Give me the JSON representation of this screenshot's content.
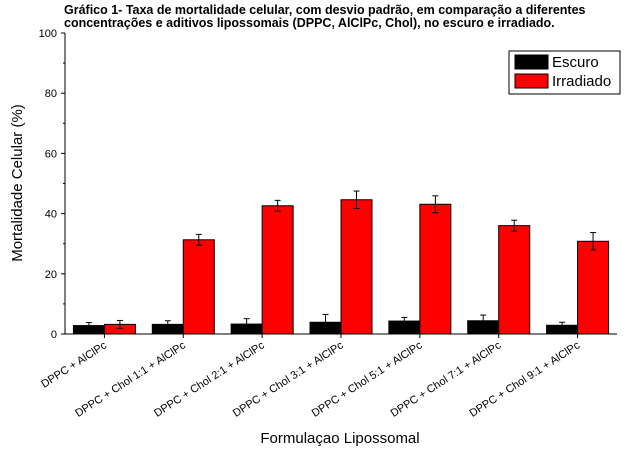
{
  "chart_data": {
    "type": "bar",
    "title_lines": [
      "Gráfico 1- Taxa de mortalidade celular, com desvio padrão, em comparação a diferentes",
      "concentrações e aditivos lipossomais (DPPC, AlClPc, Chol), no escuro e irradiado."
    ],
    "xlabel": "Formulaçao Lipossomal",
    "ylabel": "Mortalidade Celular (%)",
    "ylim": [
      0,
      100
    ],
    "yticks": [
      "0",
      "20",
      "40",
      "60",
      "80",
      "100"
    ],
    "categories": [
      "DPPC + AlClPc",
      "DPPC + Chol 1:1 + AlClPc",
      "DPPC + Chol 2:1 + AlClPc",
      "DPPC + Chol 3:1 + AlClPc",
      "DPPC + Chol 5:1 + AlClPc",
      "DPPC + Chol 7:1 + AlClPc",
      "DPPC + Chol 9:1 + AlClPc"
    ],
    "series": [
      {
        "name": "Escuro",
        "color": "#000000",
        "values": [
          2.8,
          3.2,
          3.3,
          3.9,
          4.3,
          4.4,
          2.9
        ],
        "errors": [
          1.0,
          1.2,
          1.8,
          2.6,
          1.2,
          1.9,
          1.0
        ]
      },
      {
        "name": "Irradiado",
        "color": "#ff0000",
        "values": [
          3.2,
          31.3,
          42.6,
          44.6,
          43.1,
          36.0,
          30.8
        ],
        "errors": [
          1.3,
          1.8,
          1.8,
          2.9,
          2.8,
          1.8,
          2.9
        ]
      }
    ],
    "legend_position": "top-right",
    "grid": false
  }
}
